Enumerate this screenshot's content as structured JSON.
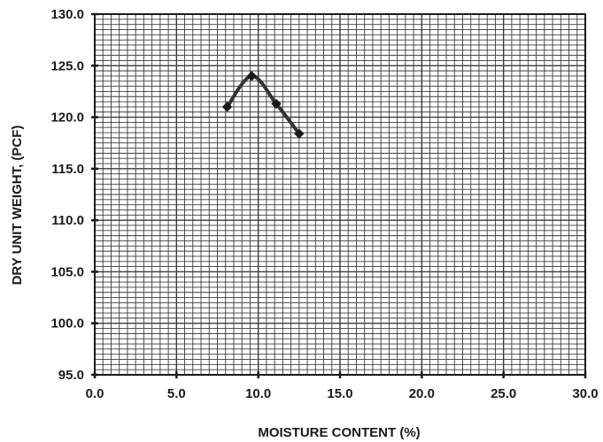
{
  "chart_data": {
    "type": "line",
    "title": "",
    "xlabel": "MOISTURE CONTENT (%)",
    "ylabel": "DRY UNIT WEIGHT, (PCF)",
    "xlim": [
      0,
      30
    ],
    "ylim": [
      95,
      130
    ],
    "x_ticks": [
      "0.0",
      "5.0",
      "10.0",
      "15.0",
      "20.0",
      "25.0",
      "30.0"
    ],
    "y_ticks": [
      "95.0",
      "100.0",
      "105.0",
      "110.0",
      "115.0",
      "120.0",
      "125.0",
      "130.0"
    ],
    "x_tick_values": [
      0,
      5,
      10,
      15,
      20,
      25,
      30
    ],
    "y_tick_values": [
      95,
      100,
      105,
      110,
      115,
      120,
      125,
      130
    ],
    "grid": true,
    "legend": "none",
    "series": [
      {
        "points": [
          {
            "x": 8.1,
            "y": 121.0
          },
          {
            "x": 9.6,
            "y": 124.0
          },
          {
            "x": 11.1,
            "y": 121.3
          },
          {
            "x": 12.5,
            "y": 118.4
          }
        ],
        "line_color": "#333333",
        "marker_color": "#1a1a1a",
        "smooth": true
      }
    ],
    "colors": {
      "grid": "#3a3a3a",
      "axis": "#1a1a1a",
      "text": "#1a1a1a"
    }
  }
}
